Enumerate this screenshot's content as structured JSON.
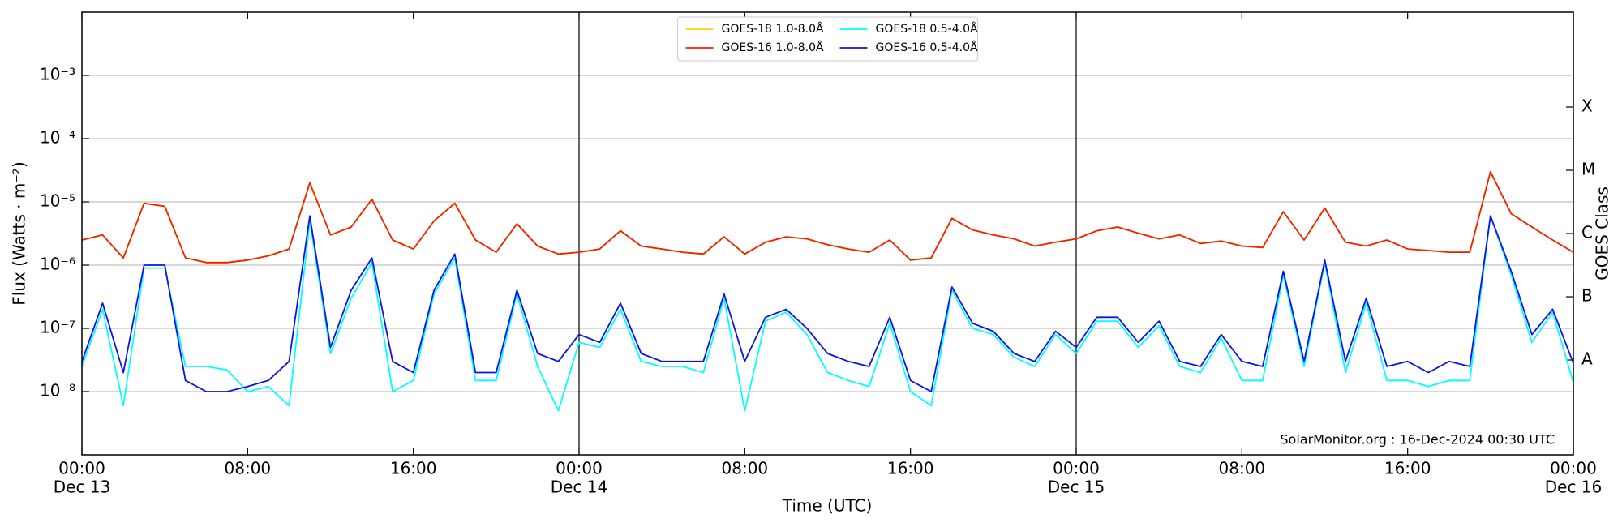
{
  "chart_data": {
    "type": "line",
    "xlabel": "Time (UTC)",
    "ylabel": "Flux (Watts · m⁻²)",
    "y2label": "GOES Class",
    "annotation": "SolarMonitor.org : 16-Dec-2024 00:30 UTC",
    "log_y": true,
    "grid": true,
    "legend": "upper center",
    "xlim": [
      "Dec 13 00:00",
      "Dec 16 00:00"
    ],
    "xticks": [
      {
        "value": "Dec 13 00:00",
        "label": [
          "00:00",
          "Dec 13"
        ]
      },
      {
        "value": "Dec 13 08:00",
        "label": [
          "08:00"
        ]
      },
      {
        "value": "Dec 13 16:00",
        "label": [
          "16:00"
        ]
      },
      {
        "value": "Dec 14 00:00",
        "label": [
          "00:00",
          "Dec 14"
        ]
      },
      {
        "value": "Dec 14 08:00",
        "label": [
          "08:00"
        ]
      },
      {
        "value": "Dec 14 16:00",
        "label": [
          "16:00"
        ]
      },
      {
        "value": "Dec 15 00:00",
        "label": [
          "00:00",
          "Dec 15"
        ]
      },
      {
        "value": "Dec 15 08:00",
        "label": [
          "08:00"
        ]
      },
      {
        "value": "Dec 15 16:00",
        "label": [
          "16:00"
        ]
      },
      {
        "value": "Dec 16 00:00",
        "label": [
          "00:00",
          "Dec 16"
        ]
      }
    ],
    "ylim": [
      1e-09,
      0.01
    ],
    "yticks": [
      {
        "value": 1e-08,
        "label": "10⁻⁸"
      },
      {
        "value": 1e-07,
        "label": "10⁻⁷"
      },
      {
        "value": 1e-06,
        "label": "10⁻⁶"
      },
      {
        "value": 1e-05,
        "label": "10⁻⁵"
      },
      {
        "value": 0.0001,
        "label": "10⁻⁴"
      },
      {
        "value": 0.001,
        "label": "10⁻³"
      }
    ],
    "y2lim": [
      1e-09,
      0.01
    ],
    "y2ticks": [
      {
        "value": 3.16e-08,
        "label": "A"
      },
      {
        "value": 3.16e-07,
        "label": "B"
      },
      {
        "value": 3.16e-06,
        "label": "C"
      },
      {
        "value": 3.16e-05,
        "label": "M"
      },
      {
        "value": 0.000316,
        "label": "X"
      }
    ],
    "x": [
      "Dec 13 00:00",
      "Dec 13 01:00",
      "Dec 13 02:00",
      "Dec 13 03:00",
      "Dec 13 04:00",
      "Dec 13 05:00",
      "Dec 13 06:00",
      "Dec 13 07:00",
      "Dec 13 08:00",
      "Dec 13 09:00",
      "Dec 13 10:00",
      "Dec 13 11:00",
      "Dec 13 12:00",
      "Dec 13 13:00",
      "Dec 13 14:00",
      "Dec 13 15:00",
      "Dec 13 16:00",
      "Dec 13 17:00",
      "Dec 13 18:00",
      "Dec 13 19:00",
      "Dec 13 20:00",
      "Dec 13 21:00",
      "Dec 13 22:00",
      "Dec 13 23:00",
      "Dec 14 00:00",
      "Dec 14 01:00",
      "Dec 14 02:00",
      "Dec 14 03:00",
      "Dec 14 04:00",
      "Dec 14 05:00",
      "Dec 14 06:00",
      "Dec 14 07:00",
      "Dec 14 08:00",
      "Dec 14 09:00",
      "Dec 14 10:00",
      "Dec 14 11:00",
      "Dec 14 12:00",
      "Dec 14 13:00",
      "Dec 14 14:00",
      "Dec 14 15:00",
      "Dec 14 16:00",
      "Dec 14 17:00",
      "Dec 14 18:00",
      "Dec 14 19:00",
      "Dec 14 20:00",
      "Dec 14 21:00",
      "Dec 14 22:00",
      "Dec 14 23:00",
      "Dec 15 00:00",
      "Dec 15 01:00",
      "Dec 15 02:00",
      "Dec 15 03:00",
      "Dec 15 04:00",
      "Dec 15 05:00",
      "Dec 15 06:00",
      "Dec 15 07:00",
      "Dec 15 08:00",
      "Dec 15 09:00",
      "Dec 15 10:00",
      "Dec 15 11:00",
      "Dec 15 12:00",
      "Dec 15 13:00",
      "Dec 15 14:00",
      "Dec 15 15:00",
      "Dec 15 16:00",
      "Dec 15 17:00",
      "Dec 15 18:00",
      "Dec 15 19:00",
      "Dec 15 20:00",
      "Dec 15 21:00",
      "Dec 15 22:00",
      "Dec 15 23:00",
      "Dec 16 00:00"
    ],
    "series": [
      {
        "name": "GOES-18 1.0-8.0Å",
        "color": "#ffd700",
        "values": [
          2.5e-06,
          3e-06,
          1.3e-06,
          9.5e-06,
          8.5e-06,
          1.3e-06,
          1.1e-06,
          1.1e-06,
          1.2e-06,
          1.4e-06,
          1.8e-06,
          2e-05,
          3e-06,
          4e-06,
          1.1e-05,
          2.5e-06,
          1.8e-06,
          5e-06,
          9.5e-06,
          2.5e-06,
          1.6e-06,
          4.5e-06,
          2e-06,
          1.5e-06,
          1.6e-06,
          1.8e-06,
          3.5e-06,
          2e-06,
          1.8e-06,
          1.6e-06,
          1.5e-06,
          2.8e-06,
          1.5e-06,
          2.3e-06,
          2.8e-06,
          2.6e-06,
          2.1e-06,
          1.8e-06,
          1.6e-06,
          2.5e-06,
          1.2e-06,
          1.3e-06,
          5.5e-06,
          3.6e-06,
          3e-06,
          2.6e-06,
          2e-06,
          2.3e-06,
          2.6e-06,
          3.5e-06,
          4e-06,
          3.2e-06,
          2.6e-06,
          3e-06,
          2.2e-06,
          2.4e-06,
          2e-06,
          1.9e-06,
          7e-06,
          2.5e-06,
          8e-06,
          2.3e-06,
          2e-06,
          2.5e-06,
          1.8e-06,
          1.7e-06,
          1.6e-06,
          1.6e-06,
          3e-05,
          6.5e-06,
          4e-06,
          2.5e-06,
          1.6e-06
        ]
      },
      {
        "name": "GOES-16 1.0-8.0Å",
        "color": "#ee2200",
        "values": [
          2.5e-06,
          3e-06,
          1.3e-06,
          9.5e-06,
          8.5e-06,
          1.3e-06,
          1.1e-06,
          1.1e-06,
          1.2e-06,
          1.4e-06,
          1.8e-06,
          2e-05,
          3e-06,
          4e-06,
          1.1e-05,
          2.5e-06,
          1.8e-06,
          5e-06,
          9.5e-06,
          2.5e-06,
          1.6e-06,
          4.5e-06,
          2e-06,
          1.5e-06,
          1.6e-06,
          1.8e-06,
          3.5e-06,
          2e-06,
          1.8e-06,
          1.6e-06,
          1.5e-06,
          2.8e-06,
          1.5e-06,
          2.3e-06,
          2.8e-06,
          2.6e-06,
          2.1e-06,
          1.8e-06,
          1.6e-06,
          2.5e-06,
          1.2e-06,
          1.3e-06,
          5.5e-06,
          3.6e-06,
          3e-06,
          2.6e-06,
          2e-06,
          2.3e-06,
          2.6e-06,
          3.5e-06,
          4e-06,
          3.2e-06,
          2.6e-06,
          3e-06,
          2.2e-06,
          2.4e-06,
          2e-06,
          1.9e-06,
          7e-06,
          2.5e-06,
          8e-06,
          2.3e-06,
          2e-06,
          2.5e-06,
          1.8e-06,
          1.7e-06,
          1.6e-06,
          1.6e-06,
          3e-05,
          6.5e-06,
          4e-06,
          2.5e-06,
          1.6e-06
        ]
      },
      {
        "name": "GOES-18 0.5-4.0Å",
        "color": "#00ffff",
        "values": [
          2.5e-08,
          2e-07,
          6e-09,
          9e-07,
          9e-07,
          2.5e-08,
          2.5e-08,
          2.2e-08,
          1e-08,
          1.2e-08,
          6e-09,
          5e-06,
          4e-08,
          3e-07,
          1.1e-06,
          1e-08,
          1.5e-08,
          3.5e-07,
          1.3e-06,
          1.5e-08,
          1.5e-08,
          3.5e-07,
          2.5e-08,
          5e-09,
          6e-08,
          5e-08,
          2e-07,
          3e-08,
          2.5e-08,
          2.5e-08,
          2e-08,
          3e-07,
          5e-09,
          1.3e-07,
          1.8e-07,
          8e-08,
          2e-08,
          1.5e-08,
          1.2e-08,
          1.2e-07,
          1e-08,
          6e-09,
          4e-07,
          1e-07,
          8e-08,
          3.5e-08,
          2.5e-08,
          8e-08,
          4e-08,
          1.3e-07,
          1.3e-07,
          5e-08,
          1.1e-07,
          2.5e-08,
          2e-08,
          7e-08,
          1.5e-08,
          1.5e-08,
          7e-07,
          2.5e-08,
          1.1e-06,
          2e-08,
          2.5e-07,
          1.5e-08,
          1.5e-08,
          1.2e-08,
          1.5e-08,
          1.5e-08,
          6e-06,
          7e-07,
          6e-08,
          1.8e-07,
          1.4e-08
        ]
      },
      {
        "name": "GOES-16 0.5-4.0Å",
        "color": "#0a14e6",
        "values": [
          3e-08,
          2.5e-07,
          2e-08,
          1e-06,
          1e-06,
          1.5e-08,
          1e-08,
          1e-08,
          1.2e-08,
          1.5e-08,
          3e-08,
          6e-06,
          5e-08,
          4e-07,
          1.3e-06,
          3e-08,
          2e-08,
          4e-07,
          1.5e-06,
          2e-08,
          2e-08,
          4e-07,
          4e-08,
          3e-08,
          8e-08,
          6e-08,
          2.5e-07,
          4e-08,
          3e-08,
          3e-08,
          3e-08,
          3.5e-07,
          3e-08,
          1.5e-07,
          2e-07,
          1e-07,
          4e-08,
          3e-08,
          2.5e-08,
          1.5e-07,
          1.5e-08,
          1e-08,
          4.5e-07,
          1.2e-07,
          9e-08,
          4e-08,
          3e-08,
          9e-08,
          5e-08,
          1.5e-07,
          1.5e-07,
          6e-08,
          1.3e-07,
          3e-08,
          2.5e-08,
          8e-08,
          3e-08,
          2.5e-08,
          8e-07,
          3e-08,
          1.2e-06,
          3e-08,
          3e-07,
          2.5e-08,
          3e-08,
          2e-08,
          3e-08,
          2.5e-08,
          6e-06,
          8e-07,
          8e-08,
          2e-07,
          2.8e-08
        ]
      }
    ]
  }
}
